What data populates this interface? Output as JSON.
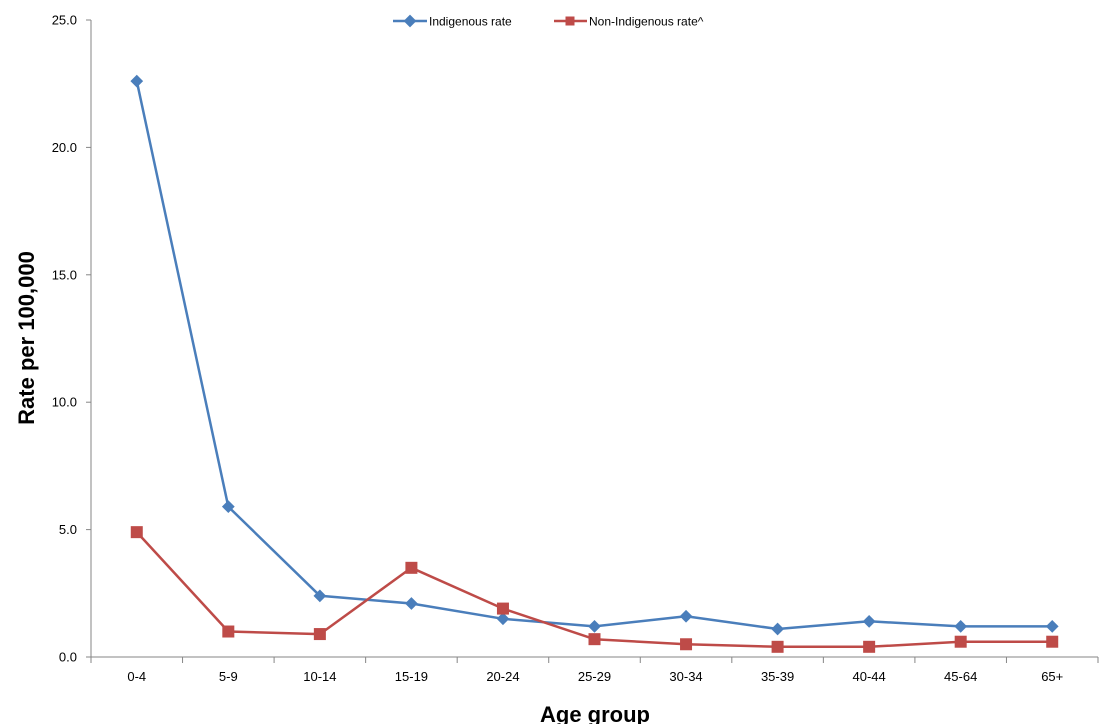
{
  "chart_data": {
    "type": "line",
    "title": "",
    "xlabel": "Age group",
    "ylabel": "Rate per 100,000",
    "categories": [
      "0-4",
      "5-9",
      "10-14",
      "15-19",
      "20-24",
      "25-29",
      "30-34",
      "35-39",
      "40-44",
      "45-64",
      "65+"
    ],
    "ylim": [
      0,
      25
    ],
    "yticks": [
      "0.0",
      "5.0",
      "10.0",
      "15.0",
      "20.0",
      "25.0"
    ],
    "grid": false,
    "legend_position": "top-center",
    "series": [
      {
        "name": "Indigenous rate",
        "color": "#4A7EBB",
        "marker": "diamond",
        "values": [
          22.6,
          5.9,
          2.4,
          2.1,
          1.5,
          1.2,
          1.6,
          1.1,
          1.4,
          1.2,
          1.2
        ]
      },
      {
        "name": "Non-Indigenous rate^",
        "color": "#BE4B48",
        "marker": "square",
        "values": [
          4.9,
          1.0,
          0.9,
          3.5,
          1.9,
          0.7,
          0.5,
          0.4,
          0.4,
          0.6,
          0.6
        ]
      }
    ]
  }
}
